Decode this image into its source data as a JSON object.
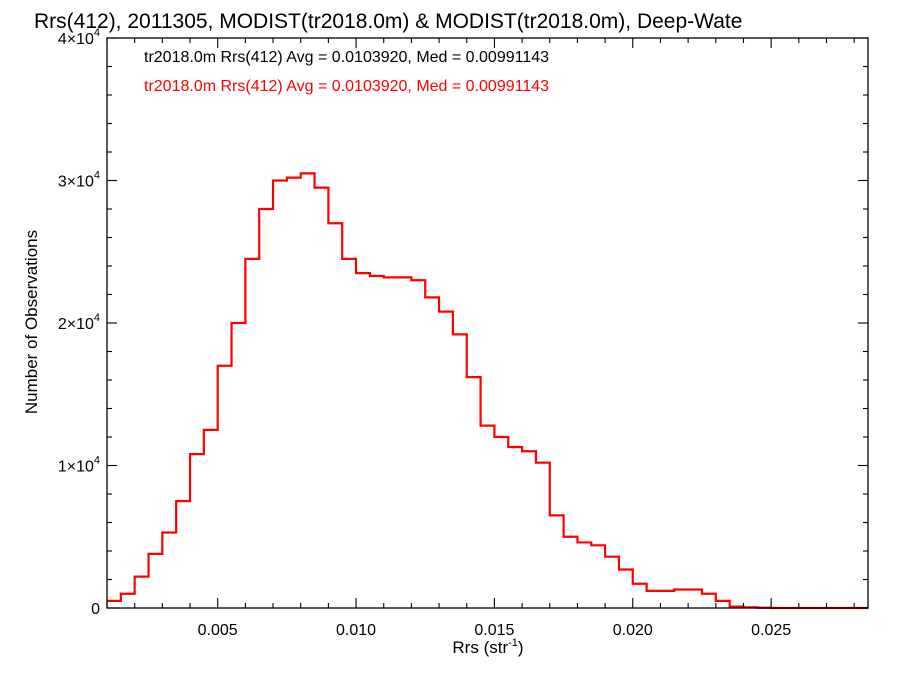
{
  "chart_data": {
    "type": "line",
    "title": "Rrs(412), 2011305, MODIST(tr2018.0m) & MODIST(tr2018.0m), Deep-Wate",
    "xlabel": "Rrs (str",
    "xlabel_sup": "-1",
    "xlabel_end": ")",
    "ylabel": "Number of Observations",
    "xlim": [
      0.001,
      0.0285
    ],
    "ylim": [
      0,
      40000
    ],
    "x_ticks": [
      {
        "value": 0.005,
        "label": "0.005"
      },
      {
        "value": 0.01,
        "label": "0.010"
      },
      {
        "value": 0.015,
        "label": "0.015"
      },
      {
        "value": 0.02,
        "label": "0.020"
      },
      {
        "value": 0.025,
        "label": "0.025"
      }
    ],
    "y_ticks": [
      {
        "value": 0,
        "label": "0",
        "exp": ""
      },
      {
        "value": 10000,
        "label": "1×10",
        "exp": "4"
      },
      {
        "value": 20000,
        "label": "2×10",
        "exp": "4"
      },
      {
        "value": 30000,
        "label": "3×10",
        "exp": "4"
      },
      {
        "value": 40000,
        "label": "4×10",
        "exp": "4"
      }
    ],
    "annotations": [
      {
        "text": "tr2018.0m Rrs(412) Avg = 0.0103920, Med = 0.00991143",
        "color": "#000000"
      },
      {
        "text": "tr2018.0m Rrs(412) Avg = 0.0103920, Med = 0.00991143",
        "color": "#ff0000"
      }
    ],
    "series": [
      {
        "color": "#ff0000",
        "x": [
          0.001,
          0.0015,
          0.002,
          0.0025,
          0.003,
          0.0035,
          0.004,
          0.0045,
          0.005,
          0.0055,
          0.006,
          0.0065,
          0.007,
          0.0075,
          0.008,
          0.0085,
          0.009,
          0.0095,
          0.01,
          0.0105,
          0.011,
          0.0115,
          0.012,
          0.0125,
          0.013,
          0.0135,
          0.014,
          0.0145,
          0.015,
          0.0155,
          0.016,
          0.0165,
          0.017,
          0.0175,
          0.018,
          0.0185,
          0.019,
          0.0195,
          0.02,
          0.0205,
          0.021,
          0.0215,
          0.022,
          0.0225,
          0.023,
          0.0235,
          0.024,
          0.0245,
          0.025,
          0.026,
          0.027,
          0.0285
        ],
        "y": [
          500,
          1000,
          2200,
          3800,
          5300,
          7500,
          10800,
          12500,
          17000,
          20000,
          24500,
          28000,
          30000,
          30200,
          30500,
          29500,
          27000,
          24500,
          23500,
          23300,
          23200,
          23200,
          23000,
          21800,
          20800,
          19200,
          16200,
          12800,
          12000,
          11300,
          11000,
          10200,
          6500,
          5000,
          4600,
          4400,
          3600,
          2700,
          1700,
          1200,
          1200,
          1300,
          1300,
          1000,
          500,
          100,
          50,
          20,
          0,
          0,
          0,
          0
        ]
      }
    ]
  }
}
